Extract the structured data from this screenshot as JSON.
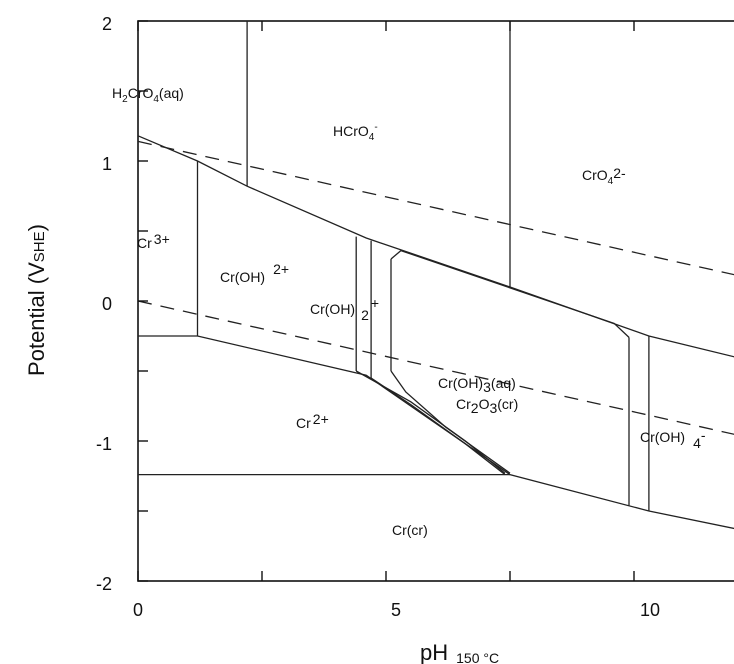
{
  "axes": {
    "xlabel": "pH",
    "xlabel_sub": "150 °C",
    "ylabel_main": "Potential (V",
    "ylabel_sub": "SHE",
    "ylabel_close": ")",
    "x_ticks": [
      "0",
      "5",
      "10"
    ],
    "y_ticks": [
      "2",
      "1",
      "0",
      "-1",
      "-2"
    ]
  },
  "regions": {
    "h2cro4": {
      "p1": "H",
      "s1": "2",
      "p2": "CrO",
      "s2": "4",
      "p3": "(aq)"
    },
    "hcro4": {
      "p1": "HCrO",
      "s1": "4",
      "sup": "-"
    },
    "cro4": {
      "p1": "CrO",
      "s1": "4",
      "sup": "2-"
    },
    "cr3": {
      "p1": "Cr",
      "sup": "3+"
    },
    "croh2plus": {
      "p1": "Cr(OH)",
      "sup": "2+"
    },
    "croh2": {
      "p1": "Cr(OH)",
      "s1": "2",
      "sup": "+"
    },
    "croh3": {
      "p1": "Cr(OH)",
      "s1": "3",
      "p2": "(aq)"
    },
    "cr2o3": {
      "p1": "Cr",
      "s1": "2",
      "p2": "O",
      "s2": "3",
      "p3": "(cr)"
    },
    "cr2": {
      "p1": "Cr",
      "sup": "2+"
    },
    "croh4": {
      "p1": "Cr(OH)",
      "s1": "4",
      "sup": "-"
    },
    "crcr": {
      "p1": "Cr(cr)"
    }
  },
  "diagram": {
    "xlim": [
      0,
      12.5
    ],
    "ylim": [
      -2,
      2
    ],
    "dashed_lines": [
      {
        "x": [
          0,
          12.5
        ],
        "y": [
          1.14,
          0.15
        ]
      },
      {
        "x": [
          0,
          12.5
        ],
        "y": [
          0.0,
          -0.99
        ]
      }
    ],
    "boundaries": [
      {
        "x": [
          0,
          1.2,
          2.2,
          4.6,
          7.5,
          10.3,
          12.5
        ],
        "y": [
          1.18,
          1.0,
          0.82,
          0.45,
          0.1,
          -0.25,
          -0.44
        ]
      },
      {
        "x": [
          1.2,
          1.2
        ],
        "y": [
          1.0,
          -0.25
        ]
      },
      {
        "x": [
          2.2,
          2.2
        ],
        "y": [
          0.82,
          2.0
        ]
      },
      {
        "x": [
          7.5,
          7.5
        ],
        "y": [
          0.1,
          2.0
        ]
      },
      {
        "x": [
          0,
          1.2,
          4.6,
          7.5,
          10.3,
          12.5
        ],
        "y": [
          -0.25,
          -0.25,
          -0.53,
          -1.24,
          -1.5,
          -1.66
        ]
      },
      {
        "x": [
          0,
          7.5
        ],
        "y": [
          -1.24,
          -1.24
        ]
      },
      {
        "x": [
          4.4,
          4.4
        ],
        "y": [
          0.46,
          -0.5
        ]
      },
      {
        "x": [
          4.7,
          4.7
        ],
        "y": [
          0.43,
          -0.55
        ]
      },
      {
        "x": [
          4.4,
          5.5,
          6.6,
          7.4
        ],
        "y": [
          -0.5,
          -0.72,
          -1.0,
          -1.23
        ]
      },
      {
        "x": [
          4.7,
          5.5,
          6.6,
          7.4
        ],
        "y": [
          -0.55,
          -0.74,
          -1.02,
          -1.24
        ]
      },
      {
        "x": [
          5.1,
          5.1
        ],
        "y": [
          0.3,
          -0.5
        ]
      },
      {
        "x": [
          5.1,
          5.3,
          9.6,
          9.9
        ],
        "y": [
          0.3,
          0.36,
          -0.16,
          -0.26
        ]
      },
      {
        "x": [
          5.1,
          5.4,
          6.2,
          7.5
        ],
        "y": [
          -0.5,
          -0.65,
          -0.9,
          -1.23
        ]
      },
      {
        "x": [
          9.9,
          9.9
        ],
        "y": [
          -0.26,
          -1.46
        ]
      },
      {
        "x": [
          10.3,
          10.3
        ],
        "y": [
          -0.25,
          -1.5
        ]
      }
    ]
  }
}
